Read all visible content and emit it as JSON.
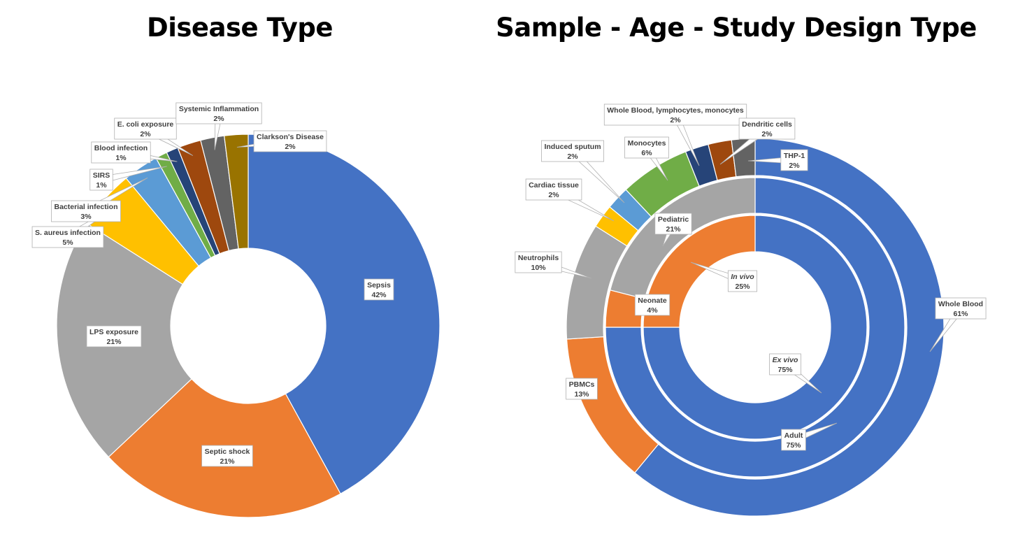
{
  "titles": {
    "left": "Disease Type",
    "right": "Sample - Age - Study Design Type"
  },
  "chart_data": [
    {
      "type": "pie",
      "variant": "donut",
      "title": "Disease Type",
      "slices": [
        {
          "name": "Sepsis",
          "value": 42,
          "label": "42%",
          "color": "#4472C4"
        },
        {
          "name": "Septic shock",
          "value": 21,
          "label": "21%",
          "color": "#ED7D31"
        },
        {
          "name": "LPS exposure",
          "value": 21,
          "label": "21%",
          "color": "#A5A5A5"
        },
        {
          "name": "S. aureus infection",
          "value": 5,
          "label": "5%",
          "color": "#FFC000"
        },
        {
          "name": "Bacterial infection",
          "value": 3,
          "label": "3%",
          "color": "#5B9BD5"
        },
        {
          "name": "SIRS",
          "value": 1,
          "label": "1%",
          "color": "#70AD47"
        },
        {
          "name": "Blood infection",
          "value": 1,
          "label": "1%",
          "color": "#264478"
        },
        {
          "name": "E. coli exposure",
          "value": 2,
          "label": "2%",
          "color": "#9E480E"
        },
        {
          "name": "Systemic Inflammation",
          "value": 2,
          "label": "2%",
          "color": "#636363"
        },
        {
          "name": "Clarkson's Disease",
          "value": 2,
          "label": "2%",
          "color": "#997300"
        }
      ]
    },
    {
      "type": "pie",
      "variant": "sunburst",
      "title": "Sample - Age - Study Design Type",
      "rings": [
        {
          "level": "study_design",
          "slices": [
            {
              "name": "Ex vivo",
              "value": 75,
              "label": "75%",
              "color": "#4472C4",
              "italic": true
            },
            {
              "name": "In vivo",
              "value": 25,
              "label": "25%",
              "color": "#ED7D31",
              "italic": true
            }
          ]
        },
        {
          "level": "age",
          "slices": [
            {
              "name": "Adult",
              "value": 75,
              "label": "75%",
              "color": "#4472C4"
            },
            {
              "name": "Neonate",
              "value": 4,
              "label": "4%",
              "color": "#ED7D31"
            },
            {
              "name": "Pediatric",
              "value": 21,
              "label": "21%",
              "color": "#A5A5A5"
            }
          ]
        },
        {
          "level": "sample",
          "slices": [
            {
              "name": "Whole Blood",
              "value": 61,
              "label": "61%",
              "color": "#4472C4"
            },
            {
              "name": "PBMCs",
              "value": 13,
              "label": "13%",
              "color": "#ED7D31"
            },
            {
              "name": "Neutrophils",
              "value": 10,
              "label": "10%",
              "color": "#A5A5A5"
            },
            {
              "name": "Cardiac tissue",
              "value": 2,
              "label": "2%",
              "color": "#FFC000"
            },
            {
              "name": "Induced sputum",
              "value": 2,
              "label": "2%",
              "color": "#5B9BD5"
            },
            {
              "name": "Monocytes",
              "value": 6,
              "label": "6%",
              "color": "#70AD47"
            },
            {
              "name": "Whole Blood, lymphocytes, monocytes",
              "value": 2,
              "label": "2%",
              "color": "#264478"
            },
            {
              "name": "Dendritic cells",
              "value": 2,
              "label": "2%",
              "color": "#9E480E"
            },
            {
              "name": "THP-1",
              "value": 2,
              "label": "2%",
              "color": "#636363"
            }
          ]
        }
      ]
    }
  ]
}
